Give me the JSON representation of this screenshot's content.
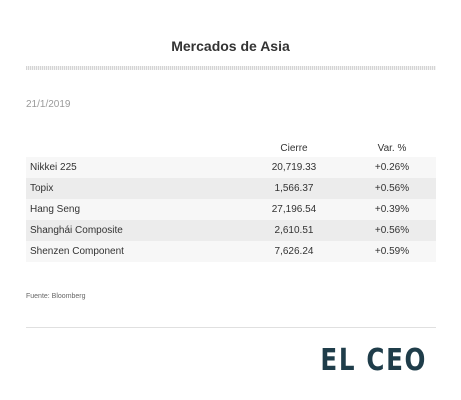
{
  "title": "Mercados de Asia",
  "date": "21/1/2019",
  "table": {
    "columns": [
      "",
      "Cierre",
      "Var. %"
    ],
    "rows": [
      {
        "name": "Nikkei 225",
        "close": "20,719.33",
        "change": "+0.26%"
      },
      {
        "name": "Topix",
        "close": "1,566.37",
        "change": "+0.56%"
      },
      {
        "name": "Hang Seng",
        "close": "27,196.54",
        "change": "+0.39%"
      },
      {
        "name": "Shanghái Composite",
        "close": "2,610.51",
        "change": "+0.56%"
      },
      {
        "name": "Shenzen Component",
        "close": "7,626.24",
        "change": "+0.59%"
      }
    ]
  },
  "source": "Fuente: Bloomberg",
  "logo": "EL CEO"
}
